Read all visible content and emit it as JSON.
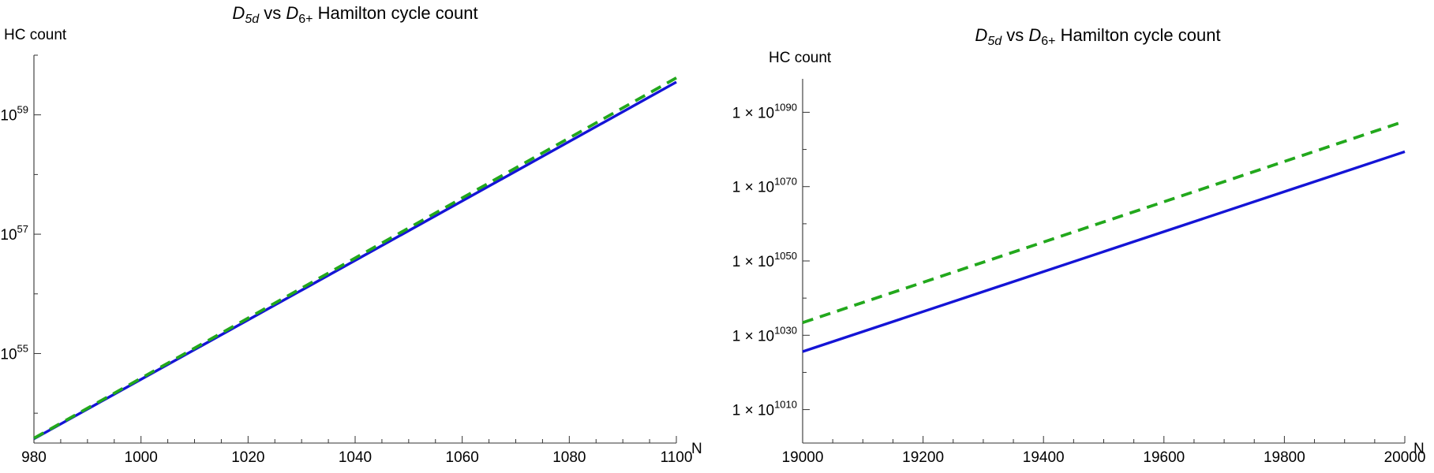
{
  "chart_data": [
    {
      "type": "line",
      "title": {
        "d5": "D",
        "d5_sub": "5d",
        "vs": "vs",
        "d6": "D",
        "d6_sub": "6+",
        "rest": "Hamilton cycle count"
      },
      "ylabel": "HC count",
      "xlabel": "N",
      "yscale": "log",
      "xlim": [
        980,
        1100
      ],
      "ylim_log10": [
        53.5,
        60.0
      ],
      "x_ticks": [
        980,
        1000,
        1020,
        1040,
        1060,
        1080,
        1100
      ],
      "x_tick_labels": [
        "980",
        "1000",
        "1020",
        "1040",
        "1060",
        "1080",
        "1100"
      ],
      "y_ticks": [
        {
          "exp": 55,
          "base": "10",
          "sup": "55"
        },
        {
          "exp": 57,
          "base": "10",
          "sup": "57"
        },
        {
          "exp": 59,
          "base": "10",
          "sup": "59"
        }
      ],
      "series": [
        {
          "x": [
            980,
            1100
          ],
          "log10_y": [
            53.57,
            59.55
          ],
          "color": "#1414d6",
          "style": "solid"
        },
        {
          "x": [
            980,
            1100
          ],
          "log10_y": [
            53.58,
            59.62
          ],
          "color": "#22a81c",
          "style": "dashed"
        }
      ]
    },
    {
      "type": "line",
      "title": {
        "d5": "D",
        "d5_sub": "5d",
        "vs": "vs",
        "d6": "D",
        "d6_sub": "6+",
        "rest": "Hamilton cycle count"
      },
      "ylabel": "HC count",
      "xlabel": "N",
      "yscale": "log",
      "xlim": [
        19000,
        20000
      ],
      "ylim_log10": [
        1001,
        1099
      ],
      "x_ticks": [
        19000,
        19200,
        19400,
        19600,
        19800,
        20000
      ],
      "x_tick_labels": [
        "19000",
        "19200",
        "19400",
        "19600",
        "19800",
        "20000"
      ],
      "y_ticks": [
        {
          "exp": 1010,
          "base": "1 × 10",
          "sup": "1010"
        },
        {
          "exp": 1030,
          "base": "1 × 10",
          "sup": "1030"
        },
        {
          "exp": 1050,
          "base": "1 × 10",
          "sup": "1050"
        },
        {
          "exp": 1070,
          "base": "1 × 10",
          "sup": "1070"
        },
        {
          "exp": 1090,
          "base": "1 × 10",
          "sup": "1090"
        }
      ],
      "series": [
        {
          "x": [
            19000,
            20000
          ],
          "log10_y": [
            1025.6,
            1079.4
          ],
          "color": "#1414d6",
          "style": "solid"
        },
        {
          "x": [
            19000,
            20000
          ],
          "log10_y": [
            1033.4,
            1087.6
          ],
          "color": "#22a81c",
          "style": "dashed"
        }
      ]
    }
  ]
}
